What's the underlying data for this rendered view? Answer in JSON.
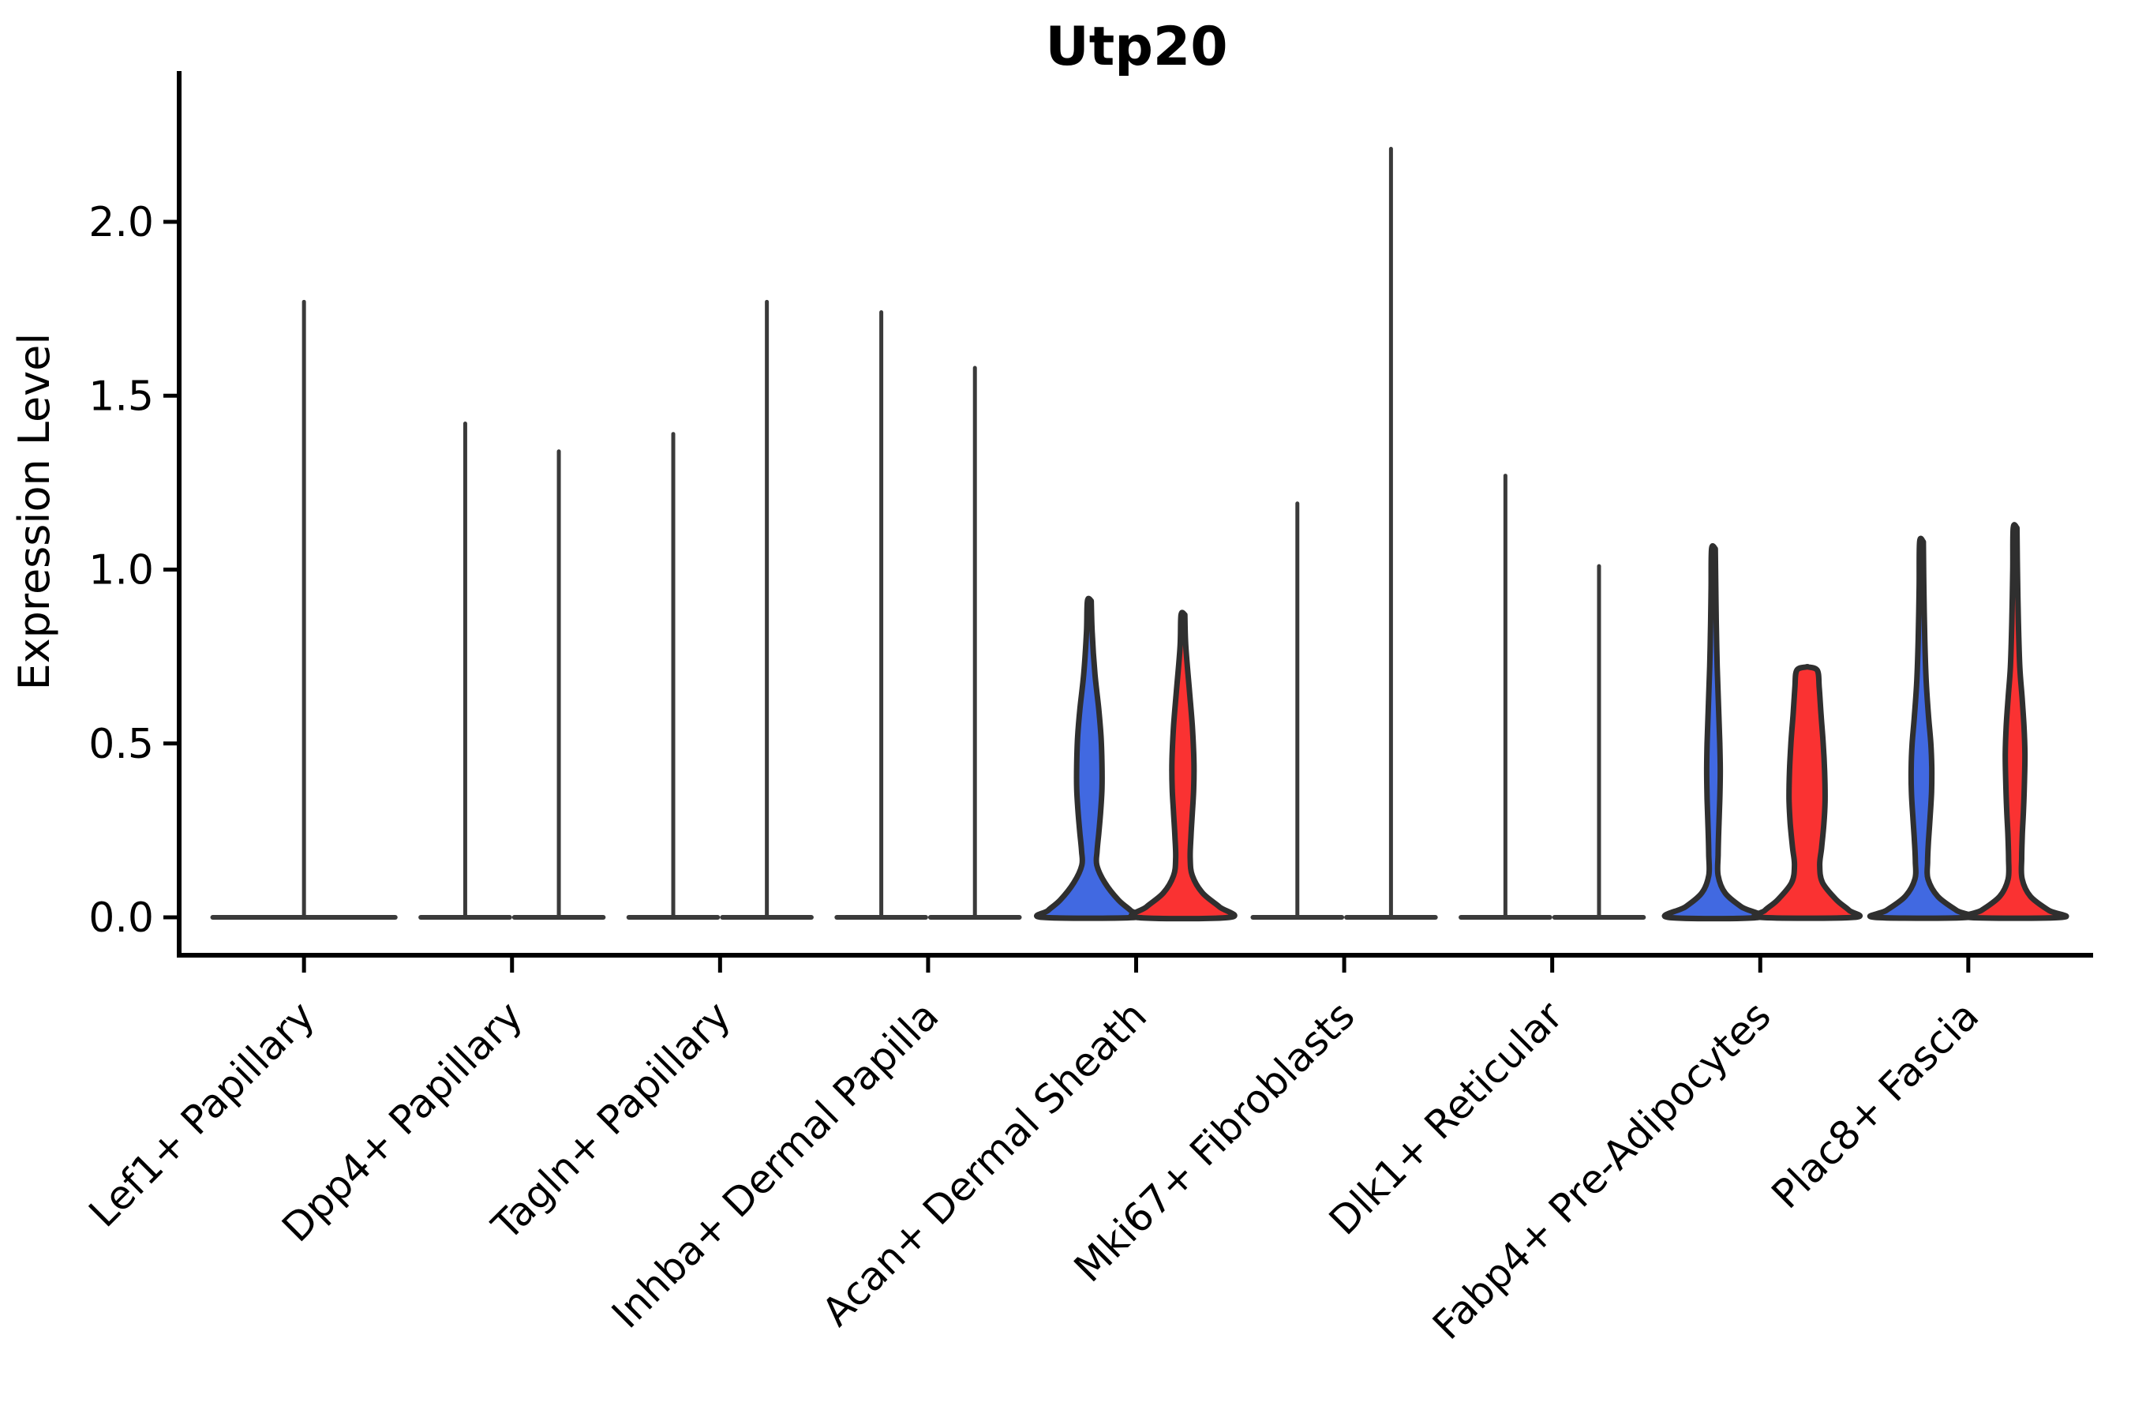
{
  "chart_data": {
    "type": "violin",
    "title": "Utp20",
    "ylabel": "Expression Level",
    "xlabel": "",
    "ylim": [
      -0.11,
      2.32
    ],
    "grid": false,
    "legend": "none",
    "yticks": [
      {
        "v": 0.0,
        "label": "0.0"
      },
      {
        "v": 0.5,
        "label": "0.5"
      },
      {
        "v": 1.0,
        "label": "1.0"
      },
      {
        "v": 1.5,
        "label": "1.5"
      },
      {
        "v": 2.0,
        "label": "2.0"
      }
    ],
    "colors": {
      "blue": "#4169E1",
      "red": "#FA3232",
      "edge": "#2F2F2F",
      "spike": "#3A3A3A",
      "axis": "#000000"
    },
    "categories": [
      {
        "label": "Lef1+ Papillary",
        "violins": [
          {
            "side": "full",
            "kind": "spike",
            "color": "none",
            "max": 1.77
          }
        ]
      },
      {
        "label": "Dpp4+ Papillary",
        "violins": [
          {
            "side": "left",
            "kind": "spike",
            "color": "none",
            "max": 1.42
          },
          {
            "side": "right",
            "kind": "spike",
            "color": "none",
            "max": 1.34
          }
        ]
      },
      {
        "label": "Tagln+ Papillary",
        "violins": [
          {
            "side": "left",
            "kind": "spike",
            "color": "none",
            "max": 1.39
          },
          {
            "side": "right",
            "kind": "spike",
            "color": "none",
            "max": 1.77
          }
        ]
      },
      {
        "label": "Inhba+ Dermal Papilla",
        "violins": [
          {
            "side": "left",
            "kind": "spike",
            "color": "none",
            "max": 1.74
          },
          {
            "side": "right",
            "kind": "spike",
            "color": "none",
            "max": 1.58
          }
        ]
      },
      {
        "label": "Acan+ Dermal Sheath",
        "violins": [
          {
            "side": "left",
            "kind": "violin",
            "color": "blue",
            "max": 0.91,
            "profile": [
              [
                0.91,
                0.04
              ],
              [
                0.82,
                0.06
              ],
              [
                0.7,
                0.12
              ],
              [
                0.6,
                0.2
              ],
              [
                0.52,
                0.25
              ],
              [
                0.44,
                0.27
              ],
              [
                0.37,
                0.27
              ],
              [
                0.3,
                0.24
              ],
              [
                0.24,
                0.2
              ],
              [
                0.19,
                0.165
              ],
              [
                0.15,
                0.16
              ],
              [
                0.1,
                0.33
              ],
              [
                0.05,
                0.62
              ],
              [
                0.02,
                0.88
              ],
              [
                0.0,
                1.0
              ]
            ]
          },
          {
            "side": "right",
            "kind": "violin",
            "color": "red",
            "max": 0.87,
            "profile": [
              [
                0.87,
                0.04
              ],
              [
                0.78,
                0.06
              ],
              [
                0.65,
                0.14
              ],
              [
                0.55,
                0.2
              ],
              [
                0.45,
                0.235
              ],
              [
                0.37,
                0.23
              ],
              [
                0.3,
                0.2
              ],
              [
                0.23,
                0.17
              ],
              [
                0.17,
                0.155
              ],
              [
                0.12,
                0.2
              ],
              [
                0.07,
                0.42
              ],
              [
                0.03,
                0.78
              ],
              [
                0.0,
                1.0
              ]
            ]
          }
        ]
      },
      {
        "label": "Mki67+ Fibroblasts",
        "violins": [
          {
            "side": "left",
            "kind": "spike",
            "color": "none",
            "max": 1.19
          },
          {
            "side": "right",
            "kind": "spike",
            "color": "none",
            "max": 2.21
          }
        ]
      },
      {
        "label": "Dlk1+ Reticular",
        "violins": [
          {
            "side": "left",
            "kind": "spike",
            "color": "none",
            "max": 1.27
          },
          {
            "side": "right",
            "kind": "spike",
            "color": "none",
            "max": 1.01
          }
        ]
      },
      {
        "label": "Fabp4+ Pre-Adipocytes",
        "violins": [
          {
            "side": "left",
            "kind": "violin",
            "color": "blue",
            "max": 1.06,
            "profile": [
              [
                1.06,
                0.04
              ],
              [
                0.95,
                0.05
              ],
              [
                0.85,
                0.06
              ],
              [
                0.72,
                0.08
              ],
              [
                0.6,
                0.11
              ],
              [
                0.5,
                0.135
              ],
              [
                0.42,
                0.145
              ],
              [
                0.34,
                0.135
              ],
              [
                0.26,
                0.115
              ],
              [
                0.18,
                0.1
              ],
              [
                0.12,
                0.1
              ],
              [
                0.07,
                0.25
              ],
              [
                0.03,
                0.6
              ],
              [
                0.0,
                0.97
              ]
            ]
          },
          {
            "side": "right",
            "kind": "violin",
            "color": "red",
            "max": 0.72,
            "profile": [
              [
                0.72,
                0.02
              ],
              [
                0.71,
                0.22
              ],
              [
                0.66,
                0.26
              ],
              [
                0.58,
                0.3
              ],
              [
                0.5,
                0.345
              ],
              [
                0.42,
                0.375
              ],
              [
                0.34,
                0.385
              ],
              [
                0.27,
                0.36
              ],
              [
                0.2,
                0.31
              ],
              [
                0.15,
                0.27
              ],
              [
                0.1,
                0.33
              ],
              [
                0.05,
                0.63
              ],
              [
                0.02,
                0.9
              ],
              [
                0.0,
                1.0
              ]
            ]
          }
        ]
      },
      {
        "label": "Plac8+ Fascia",
        "violins": [
          {
            "side": "left",
            "kind": "violin",
            "color": "blue",
            "max": 1.08,
            "profile": [
              [
                1.08,
                0.04
              ],
              [
                0.95,
                0.05
              ],
              [
                0.8,
                0.07
              ],
              [
                0.68,
                0.1
              ],
              [
                0.58,
                0.15
              ],
              [
                0.5,
                0.2
              ],
              [
                0.43,
                0.22
              ],
              [
                0.36,
                0.215
              ],
              [
                0.29,
                0.185
              ],
              [
                0.22,
                0.15
              ],
              [
                0.16,
                0.13
              ],
              [
                0.11,
                0.14
              ],
              [
                0.06,
                0.35
              ],
              [
                0.02,
                0.75
              ],
              [
                0.0,
                1.0
              ]
            ]
          },
          {
            "side": "right",
            "kind": "violin",
            "color": "red",
            "max": 1.12,
            "profile": [
              [
                1.12,
                0.04
              ],
              [
                1.0,
                0.05
              ],
              [
                0.85,
                0.07
              ],
              [
                0.72,
                0.1
              ],
              [
                0.63,
                0.15
              ],
              [
                0.55,
                0.19
              ],
              [
                0.47,
                0.21
              ],
              [
                0.39,
                0.2
              ],
              [
                0.31,
                0.18
              ],
              [
                0.24,
                0.155
              ],
              [
                0.17,
                0.14
              ],
              [
                0.11,
                0.15
              ],
              [
                0.06,
                0.33
              ],
              [
                0.02,
                0.72
              ],
              [
                0.0,
                1.0
              ]
            ]
          }
        ]
      }
    ]
  }
}
